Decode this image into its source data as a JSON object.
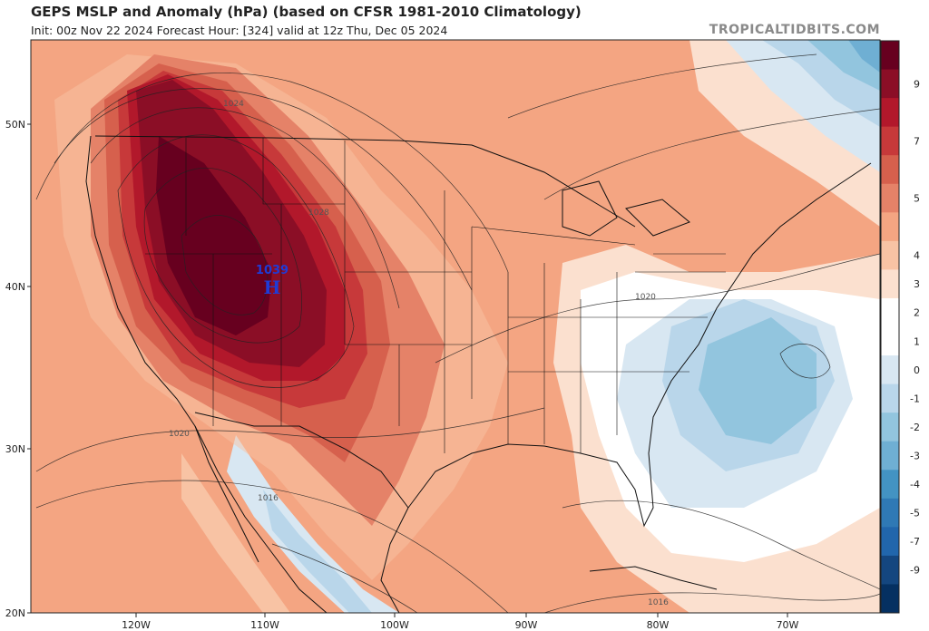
{
  "header": {
    "title": "GEPS MSLP and Anomaly (hPa) (based on CFSR 1981-2010 Climatology)",
    "subtitle": "Init: 00z Nov 22 2024   Forecast Hour: [324]   valid at 12z Thu, Dec 05 2024",
    "source": "TROPICALTIDBITS.COM"
  },
  "map": {
    "lat_labels": [
      "50N",
      "40N",
      "30N",
      "20N"
    ],
    "lon_labels": [
      "120W",
      "110W",
      "100W",
      "90W",
      "80W",
      "70W"
    ],
    "isobar_labels": [
      "1024",
      "1028",
      "1020",
      "1020",
      "1016",
      "1016"
    ],
    "high_center": {
      "symbol": "H",
      "value": "1039"
    }
  },
  "colorbar": {
    "ticks": [
      "9",
      "7",
      "5",
      "4",
      "3",
      "2",
      "1",
      "0",
      "-1",
      "-2",
      "-3",
      "-4",
      "-5",
      "-7",
      "-9"
    ],
    "colors": [
      "#67001f",
      "#8b0e26",
      "#b2182b",
      "#c7393a",
      "#d6604d",
      "#e58268",
      "#f4a582",
      "#f8c3a4",
      "#fbe0cf",
      "#ffffff",
      "#ffffff",
      "#d8e7f2",
      "#b9d6ea",
      "#92c5de",
      "#6fafd3",
      "#4393c3",
      "#2f79b5",
      "#2166ac",
      "#14467f",
      "#053061"
    ]
  }
}
